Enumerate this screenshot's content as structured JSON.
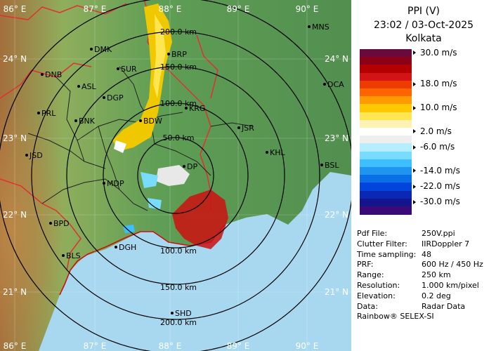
{
  "title": "PPI (V)",
  "datetime": "23:02 / 03-Oct-2025",
  "station": "Kolkata",
  "colorbar": {
    "colors": [
      "#6a0a3c",
      "#8c0018",
      "#b40000",
      "#d21414",
      "#ee3c00",
      "#ff6400",
      "#ff9a00",
      "#ffc800",
      "#ffe650",
      "#fff2b4",
      "#ffffff",
      "#eeeeee",
      "#b4eeff",
      "#78dcff",
      "#3cbeff",
      "#1e96f0",
      "#0a6ee6",
      "#0046dc",
      "#0a28b4",
      "#14148c",
      "#3c0a78"
    ],
    "labels": [
      {
        "text": "30.0 m/s",
        "index": 0
      },
      {
        "text": "18.0 m/s",
        "index": 4
      },
      {
        "text": "10.0 m/s",
        "index": 7
      },
      {
        "text": "2.0 m/s",
        "index": 10
      },
      {
        "text": "-6.0 m/s",
        "index": 12
      },
      {
        "text": "-14.0 m/s",
        "index": 15
      },
      {
        "text": "-22.0 m/s",
        "index": 17
      },
      {
        "text": "-30.0 m/s",
        "index": 19
      }
    ]
  },
  "info": [
    {
      "k": "Pdf File:",
      "v": "250V.ppi"
    },
    {
      "k": "Clutter Filter:",
      "v": "IIRDoppler 7"
    },
    {
      "k": "Time sampling:",
      "v": "48"
    },
    {
      "k": "PRF:",
      "v": "600 Hz / 450 Hz"
    },
    {
      "k": "Range:",
      "v": "250 km"
    },
    {
      "k": "Resolution:",
      "v": "1.000 km/pixel"
    },
    {
      "k": "Elevation:",
      "v": "0.2 deg"
    },
    {
      "k": "Data:",
      "v": "Radar Data"
    }
  ],
  "credit": "Rainbow® SELEX-SI",
  "map": {
    "lon_labels": [
      "86° E",
      "87° E",
      "88° E",
      "89° E",
      "90° E"
    ],
    "lat_labels": [
      "24° N",
      "23° N",
      "22° N",
      "21° N"
    ],
    "range_labels": [
      "50.0 km",
      "100.0 km",
      "150.0 km",
      "200.0 km"
    ],
    "cities": [
      "MNS",
      "DMK",
      "BRP",
      "DNB",
      "SUR",
      "ASL",
      "DCA",
      "DGP",
      "KRG",
      "PRL",
      "BNK",
      "BDW",
      "JSR",
      "KHL",
      "JSD",
      "MDP",
      "DP",
      "BSL",
      "BPD",
      "DGH",
      "BLS",
      "SHD"
    ],
    "colors": {
      "sea": "#a8d8f0",
      "land_green": "#5e9e5a",
      "land_light": "#9ac06e",
      "relief": "#b08a60",
      "state_border": "#e03030",
      "district_border": "#222222",
      "ring": "#000000",
      "echo_yellow": "#f0c800",
      "echo_red": "#cc1010"
    }
  }
}
